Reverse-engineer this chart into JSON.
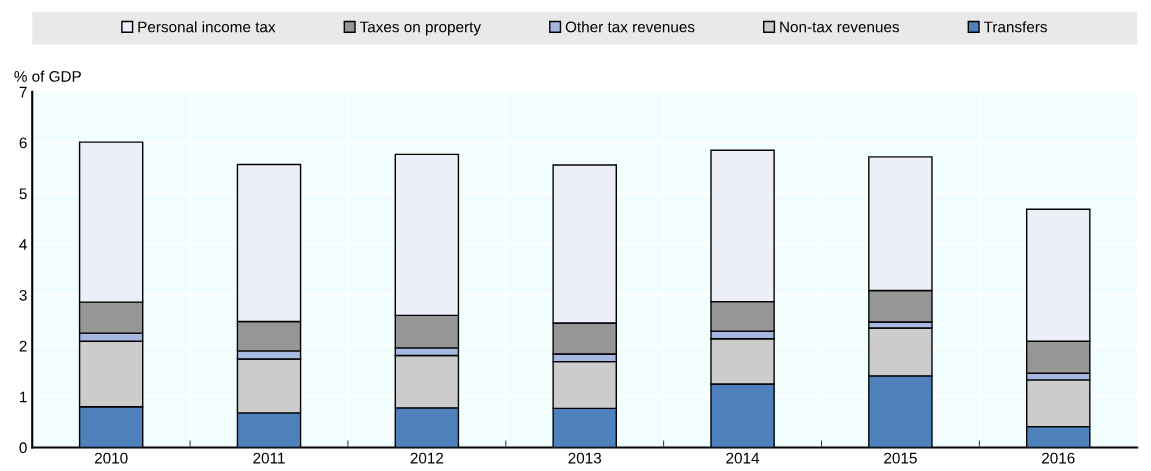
{
  "chart_data": {
    "type": "bar",
    "stacked": true,
    "ylabel": "% of GDP",
    "categories": [
      "2010",
      "2011",
      "2012",
      "2013",
      "2014",
      "2015",
      "2016"
    ],
    "series": [
      {
        "name": "Transfers",
        "color": "#4f81bd",
        "values": [
          0.8,
          0.68,
          0.78,
          0.77,
          1.25,
          1.41,
          0.41
        ]
      },
      {
        "name": "Non-tax revenues",
        "color": "#cccccc",
        "values": [
          1.29,
          1.06,
          1.03,
          0.92,
          0.89,
          0.94,
          0.92
        ]
      },
      {
        "name": "Other tax revenues",
        "color": "#a6b8e2",
        "values": [
          0.16,
          0.16,
          0.15,
          0.15,
          0.15,
          0.12,
          0.13
        ]
      },
      {
        "name": "Taxes on property",
        "color": "#969696",
        "values": [
          0.61,
          0.58,
          0.64,
          0.61,
          0.58,
          0.62,
          0.63
        ]
      },
      {
        "name": "Personal income tax",
        "color": "#eceff8",
        "values": [
          3.15,
          3.09,
          3.17,
          3.11,
          2.98,
          2.63,
          2.6
        ]
      }
    ],
    "ylim": [
      0,
      7
    ],
    "yticks": [
      0,
      1,
      2,
      3,
      4,
      5,
      6,
      7
    ],
    "grid": true,
    "legend": "top"
  }
}
